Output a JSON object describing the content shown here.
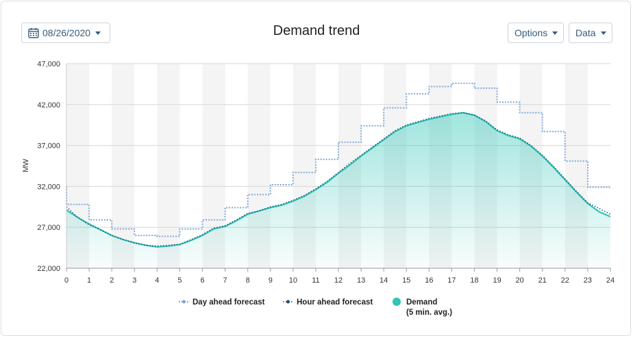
{
  "header": {
    "date_label": "08/26/2020",
    "title": "Demand trend",
    "options_label": "Options",
    "data_label": "Data"
  },
  "colors": {
    "day_ahead": "#7da7d9",
    "hour_ahead": "#1f4e79",
    "demand": "#2ec4b6"
  },
  "chart_data": {
    "type": "line",
    "ylabel": "MW",
    "xlabel": "",
    "xlim": [
      0,
      24
    ],
    "ylim": [
      22000,
      47000
    ],
    "x_ticks": [
      0,
      1,
      2,
      3,
      4,
      5,
      6,
      7,
      8,
      9,
      10,
      11,
      12,
      13,
      14,
      15,
      16,
      17,
      18,
      19,
      20,
      21,
      22,
      23,
      24
    ],
    "y_ticks": [
      22000,
      27000,
      32000,
      37000,
      42000,
      47000
    ],
    "y_tick_labels": [
      "22,000",
      "27,000",
      "32,000",
      "37,000",
      "42,000",
      "47,000"
    ],
    "grid": true,
    "legend_position": "bottom",
    "series": [
      {
        "name": "Day ahead forecast",
        "style": "step-dotted",
        "hourly": [
          29800,
          27900,
          26800,
          26000,
          25900,
          26800,
          27900,
          29400,
          31000,
          32200,
          33700,
          35300,
          37400,
          39400,
          41600,
          43300,
          44200,
          44600,
          44000,
          42300,
          41000,
          38700,
          35100,
          31900
        ]
      },
      {
        "name": "Hour ahead forecast",
        "style": "dotted",
        "x": [
          0,
          0.5,
          1,
          1.5,
          2,
          2.5,
          3,
          3.5,
          4,
          4.5,
          5,
          5.5,
          6,
          6.5,
          7,
          7.5,
          8,
          8.5,
          9,
          9.5,
          10,
          10.5,
          11,
          11.5,
          12,
          12.5,
          13,
          13.5,
          14,
          14.5,
          15,
          15.5,
          16,
          16.5,
          17,
          17.5,
          18,
          18.5,
          19,
          19.5,
          20,
          20.5,
          21,
          21.5,
          22,
          22.5,
          23,
          23.5,
          24
        ],
        "values": [
          29500,
          28200,
          27300,
          26700,
          26000,
          25500,
          25100,
          24800,
          24700,
          24800,
          24900,
          25500,
          26100,
          26900,
          27200,
          27900,
          28700,
          29000,
          29500,
          29800,
          30300,
          30900,
          31700,
          32600,
          33700,
          34800,
          35800,
          36800,
          37800,
          38800,
          39500,
          39900,
          40300,
          40600,
          40900,
          41000,
          40700,
          40000,
          38900,
          38300,
          37900,
          37000,
          35800,
          34400,
          32900,
          31400,
          30000,
          29300,
          28600
        ]
      },
      {
        "name": "Demand",
        "subtitle": "(5 min. avg.)",
        "style": "area",
        "x": [
          0,
          0.5,
          1,
          1.5,
          2,
          2.5,
          3,
          3.5,
          4,
          4.5,
          5,
          5.5,
          6,
          6.5,
          7,
          7.5,
          8,
          8.5,
          9,
          9.5,
          10,
          10.5,
          11,
          11.5,
          12,
          12.5,
          13,
          13.5,
          14,
          14.5,
          15,
          15.5,
          16,
          16.5,
          17,
          17.5,
          18,
          18.5,
          19,
          19.5,
          20,
          20.5,
          21,
          21.5,
          22,
          22.5,
          23,
          23.5,
          24
        ],
        "values": [
          29100,
          28200,
          27400,
          26700,
          26000,
          25500,
          25100,
          24800,
          24600,
          24700,
          24900,
          25400,
          26000,
          26800,
          27100,
          27800,
          28600,
          29000,
          29400,
          29700,
          30200,
          30800,
          31600,
          32500,
          33600,
          34600,
          35700,
          36700,
          37700,
          38700,
          39400,
          39800,
          40200,
          40500,
          40800,
          41000,
          40700,
          39900,
          38800,
          38200,
          37800,
          36900,
          35700,
          34300,
          32800,
          31300,
          29900,
          28900,
          28300
        ]
      }
    ]
  }
}
